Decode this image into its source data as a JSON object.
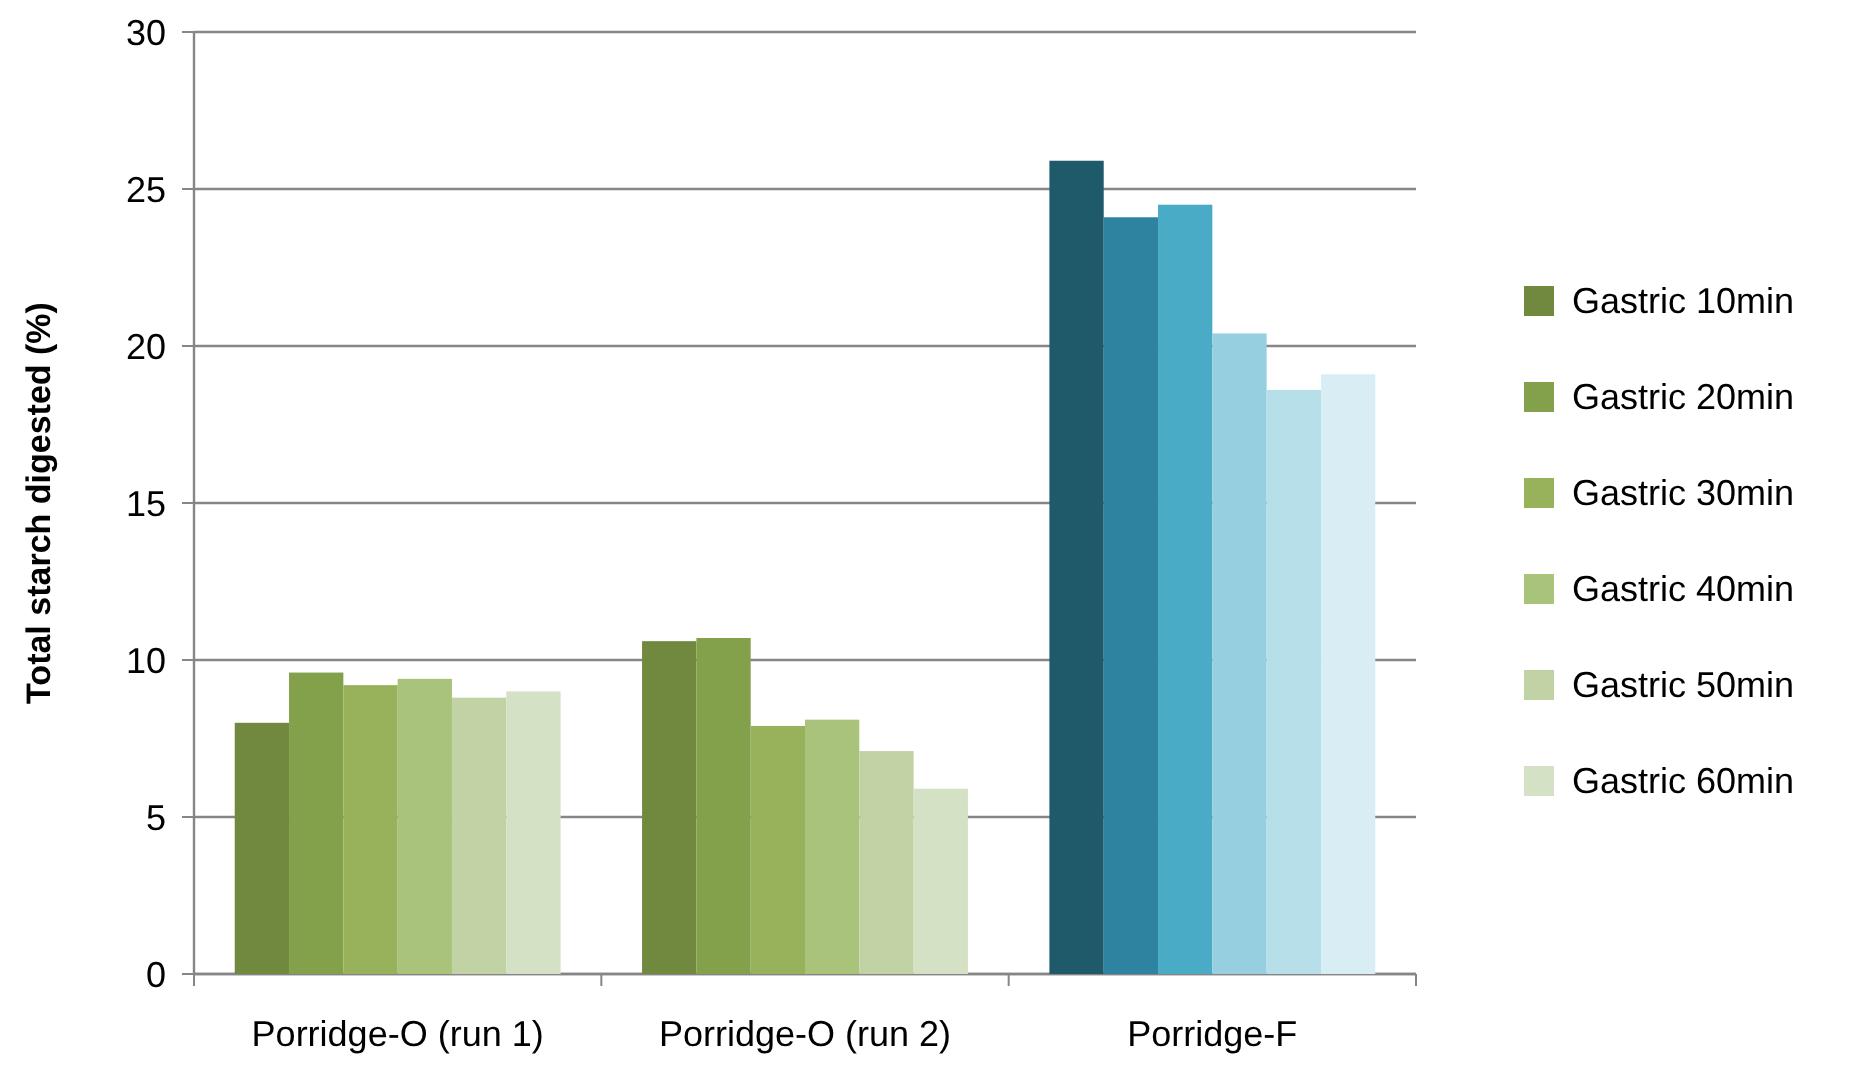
{
  "chart_data": {
    "type": "bar",
    "ylabel": "Total starch digested (%)",
    "categories": [
      "Porridge-O (run 1)",
      "Porridge-O (run 2)",
      "Porridge-F"
    ],
    "series": [
      {
        "name": "Gastric 10min",
        "color": "#71893f",
        "colors": [
          "#71893f",
          "#71893f",
          "#1f5a6a"
        ],
        "values": [
          8.0,
          10.6,
          25.9
        ]
      },
      {
        "name": "Gastric 20min",
        "color": "#83a04a",
        "colors": [
          "#83a04a",
          "#83a04a",
          "#2e84a0"
        ],
        "values": [
          9.6,
          10.7,
          24.1
        ]
      },
      {
        "name": "Gastric 30min",
        "color": "#97b25a",
        "colors": [
          "#97b25a",
          "#97b25a",
          "#4aabc7"
        ],
        "values": [
          9.2,
          7.9,
          24.5
        ]
      },
      {
        "name": "Gastric 40min",
        "color": "#a9c47a",
        "colors": [
          "#a9c47a",
          "#a9c47a",
          "#96cfe0"
        ],
        "values": [
          9.4,
          8.1,
          20.4
        ]
      },
      {
        "name": "Gastric 50min",
        "color": "#c1d3a4",
        "colors": [
          "#c1d3a4",
          "#c1d3a4",
          "#b6dfea"
        ],
        "values": [
          8.8,
          7.1,
          18.6
        ]
      },
      {
        "name": "Gastric 60min",
        "color": "#d5e1c4",
        "colors": [
          "#d5e1c4",
          "#d5e1c4",
          "#d9eef4"
        ],
        "values": [
          9.0,
          5.9,
          19.1
        ]
      }
    ],
    "ylim": [
      0,
      30
    ],
    "yticks": [
      0,
      5,
      10,
      15,
      20,
      25,
      30
    ],
    "grid": "y",
    "legend": "right"
  }
}
